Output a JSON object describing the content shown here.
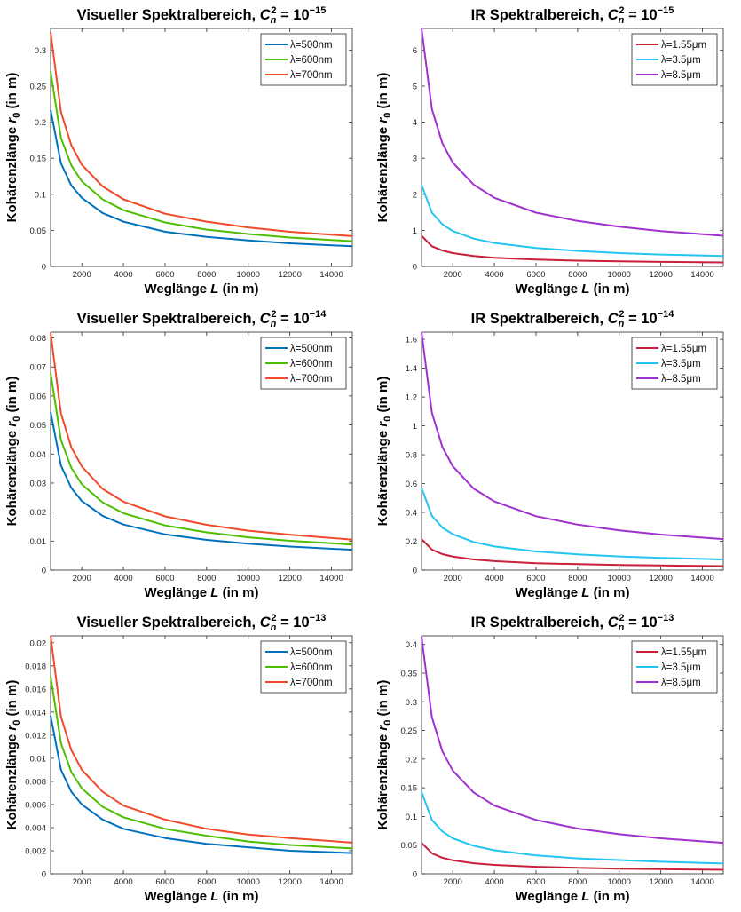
{
  "chart_data": [
    {
      "type": "line",
      "title": "Visueller Spektralbereich, C_n^2 = 10^-15",
      "title_parts": {
        "text": "Visueller Spektralbereich, ",
        "sym": "C",
        "sub": "n",
        "sup": "2",
        "eq": " = 10",
        "exp": "−15"
      },
      "xlabel": "Weglänge L (in m)",
      "xlabel_parts": {
        "pre": "Weglänge ",
        "var": "L",
        "post": " (in m)"
      },
      "ylabel": "Kohärenzlänge r_0 (in m)",
      "ylabel_parts": {
        "pre": "Kohärenzlänge ",
        "var": "r",
        "sub": "0",
        "post": " (in m)"
      },
      "xlim": [
        500,
        15000
      ],
      "ylim": [
        0,
        0.33
      ],
      "xticks": [
        2000,
        4000,
        6000,
        8000,
        10000,
        12000,
        14000
      ],
      "xtick_labels": [
        "2000",
        "4000",
        "6000",
        "8000",
        "10000",
        "12000",
        "14000"
      ],
      "yticks": [
        0,
        0.05,
        0.1,
        0.15,
        0.2,
        0.25,
        0.3
      ],
      "ytick_labels": [
        "0",
        "0.05",
        "0.1",
        "0.15",
        "0.2",
        "0.25",
        "0.3"
      ],
      "legend_position": "top-right",
      "grid": false,
      "series": [
        {
          "name": "λ=500nm",
          "color": "#0072BD",
          "x": [
            500,
            1000,
            1500,
            2000,
            3000,
            4000,
            6000,
            8000,
            10000,
            12000,
            15000
          ],
          "y": [
            0.217,
            0.143,
            0.112,
            0.095,
            0.074,
            0.062,
            0.048,
            0.041,
            0.036,
            0.032,
            0.028
          ]
        },
        {
          "name": "λ=600nm",
          "color": "#4DBF00",
          "x": [
            500,
            1000,
            1500,
            2000,
            3000,
            4000,
            6000,
            8000,
            10000,
            12000,
            15000
          ],
          "y": [
            0.27,
            0.178,
            0.14,
            0.118,
            0.093,
            0.078,
            0.061,
            0.051,
            0.045,
            0.04,
            0.035
          ]
        },
        {
          "name": "λ=700nm",
          "color": "#F04A2A",
          "x": [
            500,
            1000,
            1500,
            2000,
            3000,
            4000,
            6000,
            8000,
            10000,
            12000,
            15000
          ],
          "y": [
            0.325,
            0.214,
            0.168,
            0.141,
            0.111,
            0.093,
            0.073,
            0.062,
            0.054,
            0.048,
            0.042
          ]
        }
      ]
    },
    {
      "type": "line",
      "title": "IR Spektralbereich, C_n^2 = 10^-15",
      "title_parts": {
        "text": "IR Spektralbereich, ",
        "sym": "C",
        "sub": "n",
        "sup": "2",
        "eq": " = 10",
        "exp": "−15"
      },
      "xlabel": "Weglänge L (in m)",
      "xlabel_parts": {
        "pre": "Weglänge ",
        "var": "L",
        "post": " (in m)"
      },
      "ylabel": "Kohärenzlänge r_0 (in m)",
      "ylabel_parts": {
        "pre": "Kohärenzlänge ",
        "var": "r",
        "sub": "0",
        "post": " (in m)"
      },
      "xlim": [
        500,
        15000
      ],
      "ylim": [
        0,
        6.6
      ],
      "xticks": [
        2000,
        4000,
        6000,
        8000,
        10000,
        12000,
        14000
      ],
      "xtick_labels": [
        "2000",
        "4000",
        "6000",
        "8000",
        "10000",
        "12000",
        "14000"
      ],
      "yticks": [
        0,
        1,
        2,
        3,
        4,
        5,
        6
      ],
      "ytick_labels": [
        "0",
        "1",
        "2",
        "3",
        "4",
        "5",
        "6"
      ],
      "legend_position": "top-right",
      "grid": false,
      "series": [
        {
          "name": "λ=1.55μm",
          "color": "#C8203A",
          "x": [
            500,
            1000,
            1500,
            2000,
            3000,
            4000,
            6000,
            8000,
            10000,
            12000,
            15000
          ],
          "y": [
            0.85,
            0.56,
            0.44,
            0.37,
            0.29,
            0.24,
            0.19,
            0.16,
            0.14,
            0.125,
            0.11
          ]
        },
        {
          "name": "λ=3.5μm",
          "color": "#22C4F0",
          "x": [
            500,
            1000,
            1500,
            2000,
            3000,
            4000,
            6000,
            8000,
            10000,
            12000,
            15000
          ],
          "y": [
            2.26,
            1.49,
            1.17,
            0.98,
            0.77,
            0.65,
            0.51,
            0.43,
            0.37,
            0.33,
            0.29
          ]
        },
        {
          "name": "λ=8.5μm",
          "color": "#A030D0",
          "x": [
            500,
            1000,
            1500,
            2000,
            3000,
            4000,
            6000,
            8000,
            10000,
            12000,
            15000
          ],
          "y": [
            6.6,
            4.36,
            3.42,
            2.88,
            2.27,
            1.9,
            1.49,
            1.26,
            1.1,
            0.98,
            0.85
          ]
        }
      ]
    },
    {
      "type": "line",
      "title": "Visueller Spektralbereich, C_n^2 = 10^-14",
      "title_parts": {
        "text": "Visueller Spektralbereich, ",
        "sym": "C",
        "sub": "n",
        "sup": "2",
        "eq": " = 10",
        "exp": "−14"
      },
      "xlabel": "Weglänge L (in m)",
      "xlabel_parts": {
        "pre": "Weglänge ",
        "var": "L",
        "post": " (in m)"
      },
      "ylabel": "Kohärenzlänge r_0 (in m)",
      "ylabel_parts": {
        "pre": "Kohärenzlänge ",
        "var": "r",
        "sub": "0",
        "post": " (in m)"
      },
      "xlim": [
        500,
        15000
      ],
      "ylim": [
        0,
        0.082
      ],
      "xticks": [
        2000,
        4000,
        6000,
        8000,
        10000,
        12000,
        14000
      ],
      "xtick_labels": [
        "2000",
        "4000",
        "6000",
        "8000",
        "10000",
        "12000",
        "14000"
      ],
      "yticks": [
        0,
        0.01,
        0.02,
        0.03,
        0.04,
        0.05,
        0.06,
        0.07,
        0.08
      ],
      "ytick_labels": [
        "0",
        "0.01",
        "0.02",
        "0.03",
        "0.04",
        "0.05",
        "0.06",
        "0.07",
        "0.08"
      ],
      "legend_position": "top-right",
      "grid": false,
      "series": [
        {
          "name": "λ=500nm",
          "color": "#0072BD",
          "x": [
            500,
            1000,
            1500,
            2000,
            3000,
            4000,
            6000,
            8000,
            10000,
            12000,
            15000
          ],
          "y": [
            0.0545,
            0.036,
            0.0283,
            0.0238,
            0.0187,
            0.0157,
            0.0123,
            0.0104,
            0.0091,
            0.0081,
            0.007
          ]
        },
        {
          "name": "λ=600nm",
          "color": "#4DBF00",
          "x": [
            500,
            1000,
            1500,
            2000,
            3000,
            4000,
            6000,
            8000,
            10000,
            12000,
            15000
          ],
          "y": [
            0.068,
            0.0448,
            0.0352,
            0.0296,
            0.0233,
            0.0196,
            0.0154,
            0.013,
            0.0113,
            0.0101,
            0.0088
          ]
        },
        {
          "name": "λ=700nm",
          "color": "#F04A2A",
          "x": [
            500,
            1000,
            1500,
            2000,
            3000,
            4000,
            6000,
            8000,
            10000,
            12000,
            15000
          ],
          "y": [
            0.0818,
            0.054,
            0.0423,
            0.0357,
            0.028,
            0.0236,
            0.0185,
            0.0156,
            0.0136,
            0.0122,
            0.0105
          ]
        }
      ]
    },
    {
      "type": "line",
      "title": "IR Spektralbereich, C_n^2 = 10^-14",
      "title_parts": {
        "text": "IR Spektralbereich, ",
        "sym": "C",
        "sub": "n",
        "sup": "2",
        "eq": " = 10",
        "exp": "−14"
      },
      "xlabel": "Weglänge L (in m)",
      "xlabel_parts": {
        "pre": "Weglänge ",
        "var": "L",
        "post": " (in m)"
      },
      "ylabel": "Kohärenzlänge r_0 (in m)",
      "ylabel_parts": {
        "pre": "Kohärenzlänge ",
        "var": "r",
        "sub": "0",
        "post": " (in m)"
      },
      "xlim": [
        500,
        15000
      ],
      "ylim": [
        0,
        1.65
      ],
      "xticks": [
        2000,
        4000,
        6000,
        8000,
        10000,
        12000,
        14000
      ],
      "xtick_labels": [
        "2000",
        "4000",
        "6000",
        "8000",
        "10000",
        "12000",
        "14000"
      ],
      "yticks": [
        0,
        0.2,
        0.4,
        0.6,
        0.8,
        1,
        1.2,
        1.4,
        1.6
      ],
      "ytick_labels": [
        "0",
        "0.2",
        "0.4",
        "0.6",
        "0.8",
        "1",
        "1.2",
        "1.4",
        "1.6"
      ],
      "legend_position": "top-right",
      "grid": false,
      "series": [
        {
          "name": "λ=1.55μm",
          "color": "#C8203A",
          "x": [
            500,
            1000,
            1500,
            2000,
            3000,
            4000,
            6000,
            8000,
            10000,
            12000,
            15000
          ],
          "y": [
            0.215,
            0.142,
            0.111,
            0.094,
            0.074,
            0.062,
            0.048,
            0.041,
            0.036,
            0.032,
            0.028
          ]
        },
        {
          "name": "λ=3.5μm",
          "color": "#22C4F0",
          "x": [
            500,
            1000,
            1500,
            2000,
            3000,
            4000,
            6000,
            8000,
            10000,
            12000,
            15000
          ],
          "y": [
            0.57,
            0.376,
            0.295,
            0.249,
            0.195,
            0.164,
            0.129,
            0.109,
            0.095,
            0.085,
            0.074
          ]
        },
        {
          "name": "λ=8.5μm",
          "color": "#A030D0",
          "x": [
            500,
            1000,
            1500,
            2000,
            3000,
            4000,
            6000,
            8000,
            10000,
            12000,
            15000
          ],
          "y": [
            1.65,
            1.09,
            0.855,
            0.72,
            0.566,
            0.476,
            0.374,
            0.315,
            0.275,
            0.246,
            0.215
          ]
        }
      ]
    },
    {
      "type": "line",
      "title": "Visueller Spektralbereich, C_n^2 = 10^-13",
      "title_parts": {
        "text": "Visueller Spektralbereich, ",
        "sym": "C",
        "sub": "n",
        "sup": "2",
        "eq": " = 10",
        "exp": "−13"
      },
      "xlabel": "Weglänge L (in m)",
      "xlabel_parts": {
        "pre": "Weglänge ",
        "var": "L",
        "post": " (in m)"
      },
      "ylabel": "Kohärenzlänge r_0 (in m)",
      "ylabel_parts": {
        "pre": "Kohärenzlänge ",
        "var": "r",
        "sub": "0",
        "post": " (in m)"
      },
      "xlim": [
        500,
        15000
      ],
      "ylim": [
        0,
        0.0206
      ],
      "xticks": [
        2000,
        4000,
        6000,
        8000,
        10000,
        12000,
        14000
      ],
      "xtick_labels": [
        "2000",
        "4000",
        "6000",
        "8000",
        "10000",
        "12000",
        "14000"
      ],
      "yticks": [
        0,
        0.002,
        0.004,
        0.006,
        0.008,
        0.01,
        0.012,
        0.014,
        0.016,
        0.018,
        0.02
      ],
      "ytick_labels": [
        "0",
        "0.002",
        "0.004",
        "0.006",
        "0.008",
        "0.01",
        "0.012",
        "0.014",
        "0.016",
        "0.018",
        "0.02"
      ],
      "legend_position": "top-right",
      "grid": false,
      "series": [
        {
          "name": "λ=500nm",
          "color": "#0072BD",
          "x": [
            500,
            1000,
            1500,
            2000,
            3000,
            4000,
            6000,
            8000,
            10000,
            12000,
            15000
          ],
          "y": [
            0.0137,
            0.009,
            0.0071,
            0.006,
            0.0047,
            0.0039,
            0.0031,
            0.0026,
            0.0023,
            0.002,
            0.0018
          ]
        },
        {
          "name": "λ=600nm",
          "color": "#4DBF00",
          "x": [
            500,
            1000,
            1500,
            2000,
            3000,
            4000,
            6000,
            8000,
            10000,
            12000,
            15000
          ],
          "y": [
            0.0171,
            0.0113,
            0.0088,
            0.0074,
            0.0058,
            0.0049,
            0.0039,
            0.0033,
            0.0028,
            0.0025,
            0.0022
          ]
        },
        {
          "name": "λ=700nm",
          "color": "#F04A2A",
          "x": [
            500,
            1000,
            1500,
            2000,
            3000,
            4000,
            6000,
            8000,
            10000,
            12000,
            15000
          ],
          "y": [
            0.0206,
            0.0136,
            0.0107,
            0.009,
            0.0071,
            0.0059,
            0.0047,
            0.0039,
            0.0034,
            0.0031,
            0.0027
          ]
        }
      ]
    },
    {
      "type": "line",
      "title": "IR Spektralbereich, C_n^2 = 10^-13",
      "title_parts": {
        "text": "IR Spektralbereich, ",
        "sym": "C",
        "sub": "n",
        "sup": "2",
        "eq": " = 10",
        "exp": "−13"
      },
      "xlabel": "Weglänge L (in m)",
      "xlabel_parts": {
        "pre": "Weglänge ",
        "var": "L",
        "post": " (in m)"
      },
      "ylabel": "Kohärenzlänge r_0 (in m)",
      "ylabel_parts": {
        "pre": "Kohärenzlänge ",
        "var": "r",
        "sub": "0",
        "post": " (in m)"
      },
      "xlim": [
        500,
        15000
      ],
      "ylim": [
        0,
        0.415
      ],
      "xticks": [
        2000,
        4000,
        6000,
        8000,
        10000,
        12000,
        14000
      ],
      "xtick_labels": [
        "2000",
        "4000",
        "6000",
        "8000",
        "10000",
        "12000",
        "14000"
      ],
      "yticks": [
        0,
        0.05,
        0.1,
        0.15,
        0.2,
        0.25,
        0.3,
        0.35,
        0.4
      ],
      "ytick_labels": [
        "0",
        "0.05",
        "0.1",
        "0.15",
        "0.2",
        "0.25",
        "0.3",
        "0.35",
        "0.4"
      ],
      "legend_position": "top-right",
      "grid": false,
      "series": [
        {
          "name": "λ=1.55μm",
          "color": "#C8203A",
          "x": [
            500,
            1000,
            1500,
            2000,
            3000,
            4000,
            6000,
            8000,
            10000,
            12000,
            15000
          ],
          "y": [
            0.054,
            0.036,
            0.028,
            0.0235,
            0.0185,
            0.0155,
            0.0122,
            0.0103,
            0.009,
            0.008,
            0.007
          ]
        },
        {
          "name": "λ=3.5μm",
          "color": "#22C4F0",
          "x": [
            500,
            1000,
            1500,
            2000,
            3000,
            4000,
            6000,
            8000,
            10000,
            12000,
            15000
          ],
          "y": [
            0.143,
            0.094,
            0.074,
            0.062,
            0.049,
            0.041,
            0.032,
            0.027,
            0.024,
            0.021,
            0.018
          ]
        },
        {
          "name": "λ=8.5μm",
          "color": "#A030D0",
          "x": [
            500,
            1000,
            1500,
            2000,
            3000,
            4000,
            6000,
            8000,
            10000,
            12000,
            15000
          ],
          "y": [
            0.413,
            0.273,
            0.214,
            0.18,
            0.142,
            0.119,
            0.094,
            0.079,
            0.069,
            0.062,
            0.054
          ]
        }
      ]
    }
  ]
}
